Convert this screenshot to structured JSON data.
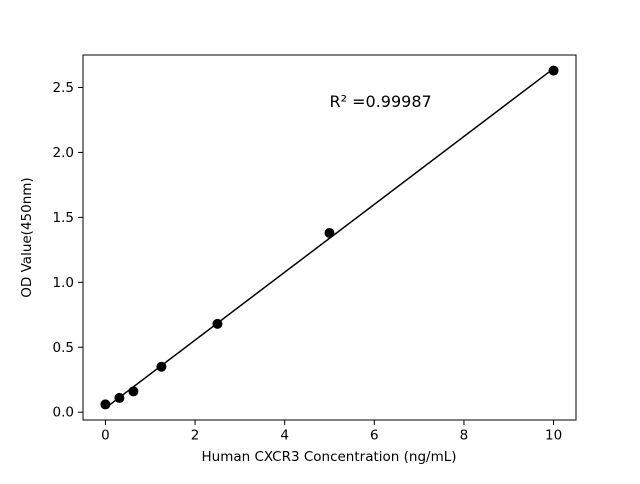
{
  "figure": {
    "background": "#ffffff"
  },
  "chart_data": {
    "type": "scatter",
    "title": "",
    "xlabel": "Human CXCR3 Concentration (ng/mL)",
    "ylabel": "OD Value(450nm)",
    "xlim": [
      -0.5,
      10.5
    ],
    "ylim": [
      -0.06,
      2.75
    ],
    "grid": false,
    "legend_position": "none",
    "x_ticks": [
      {
        "value": 0,
        "label": "0"
      },
      {
        "value": 2,
        "label": "2"
      },
      {
        "value": 4,
        "label": "4"
      },
      {
        "value": 6,
        "label": "6"
      },
      {
        "value": 8,
        "label": "8"
      },
      {
        "value": 10,
        "label": "10"
      }
    ],
    "y_ticks": [
      {
        "value": 0.0,
        "label": "0.0"
      },
      {
        "value": 0.5,
        "label": "0.5"
      },
      {
        "value": 1.0,
        "label": "1.0"
      },
      {
        "value": 1.5,
        "label": "1.5"
      },
      {
        "value": 2.0,
        "label": "2.0"
      },
      {
        "value": 2.5,
        "label": "2.5"
      }
    ],
    "points": [
      {
        "x": 0,
        "y": 0.06
      },
      {
        "x": 0.3125,
        "y": 0.11
      },
      {
        "x": 0.625,
        "y": 0.16
      },
      {
        "x": 1.25,
        "y": 0.35
      },
      {
        "x": 2.5,
        "y": 0.68
      },
      {
        "x": 5,
        "y": 1.38
      },
      {
        "x": 10,
        "y": 2.63
      }
    ],
    "fit_line": {
      "type": "linear-least-squares",
      "x_start": 0,
      "x_end": 10
    },
    "annotation": {
      "text": "R² =0.99987",
      "x": 5.0,
      "y": 2.35,
      "anchor": "start"
    },
    "colors": {
      "marker": "#000000",
      "line": "#000000",
      "axis": "#000000",
      "background": "#ffffff"
    }
  }
}
